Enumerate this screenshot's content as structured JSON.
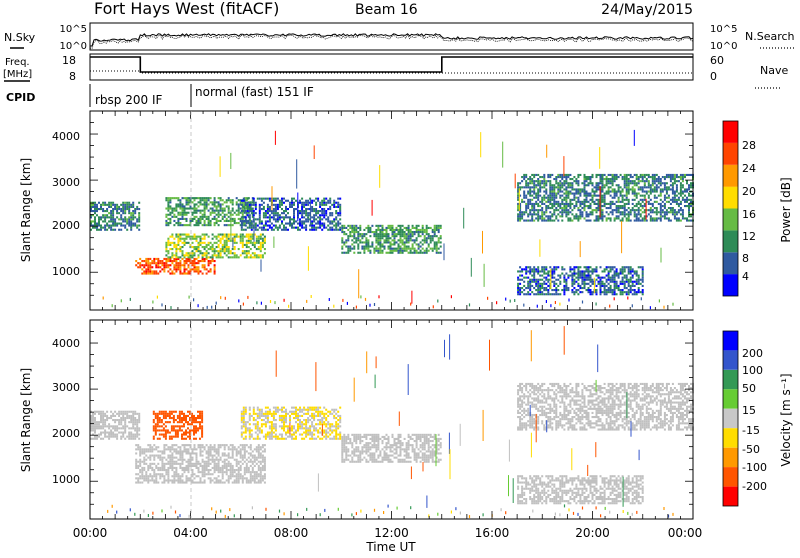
{
  "header": {
    "title": "Fort Hays West (fitACF)",
    "beam": "Beam 16",
    "date": "24/May/2015"
  },
  "top_panels": {
    "nsky_label": "N.Sky",
    "nsearch_label": "N.Search",
    "nsky_ticks": [
      "10^5",
      "10^0"
    ],
    "nsearch_ticks": [
      "10^5",
      "10^0"
    ],
    "freq_label_1": "Freq.",
    "freq_label_2": "[MHz]",
    "freq_ticks": [
      "18",
      "8"
    ],
    "nave_label": "Nave",
    "nave_ticks": [
      "60",
      "0"
    ],
    "cpid_label": "CPID",
    "cpid_segments": [
      {
        "label": "rbsp 200 IF",
        "start_hour": 0,
        "end_hour": 4.0
      },
      {
        "label": "normal (fast) 151 IF",
        "start_hour": 4.0,
        "end_hour": 24
      }
    ],
    "freq_trace": [
      {
        "start_hour": 0,
        "end_hour": 2.0,
        "mhz": 18
      },
      {
        "start_hour": 2.0,
        "end_hour": 14.0,
        "mhz": 10.5
      },
      {
        "start_hour": 14.0,
        "end_hour": 24,
        "mhz": 18
      }
    ]
  },
  "power_panel": {
    "ylabel": "Slant Range [km]",
    "yticks": [
      "1000",
      "2000",
      "3000",
      "4000"
    ],
    "colorbar_label": "Power [dB]",
    "colorbar_ticks": [
      "4",
      "8",
      "12",
      "16",
      "20",
      "24",
      "28"
    ]
  },
  "velocity_panel": {
    "ylabel": "Slant Range [km]",
    "yticks": [
      "1000",
      "2000",
      "3000",
      "4000"
    ],
    "colorbar_label": "Velocity [m s⁻¹]",
    "colorbar_ticks": [
      "200",
      "100",
      "50",
      "15",
      "-15",
      "-50",
      "-100",
      "-200"
    ]
  },
  "xaxis": {
    "label": "Time UT",
    "ticks": [
      "00:00",
      "04:00",
      "08:00",
      "12:00",
      "16:00",
      "20:00",
      "00:00"
    ]
  },
  "colors": {
    "power_scale": [
      "#0000ff",
      "#2f5aa0",
      "#2e8b57",
      "#66bb44",
      "#ffdd00",
      "#ff9900",
      "#ff4400",
      "#ff0000"
    ],
    "velocity_scale": [
      "#0000ff",
      "#3355cc",
      "#339955",
      "#66cc33",
      "#c8c8c8",
      "#ffdd00",
      "#ff9900",
      "#ff5500",
      "#ff0000"
    ],
    "ground_scatter": "#c0c0c0"
  },
  "chart_data": [
    {
      "type": "heatmap",
      "title": "Power",
      "x_units": "hours UT",
      "xlim": [
        0,
        24
      ],
      "y_units": "km",
      "ylim": [
        180,
        4500
      ],
      "colorbar_range_db": [
        0,
        30
      ],
      "echo_regions": [
        {
          "start_hour": 0.0,
          "end_hour": 2.0,
          "range_km": [
            1900,
            2500
          ],
          "power_db": 8
        },
        {
          "start_hour": 1.8,
          "end_hour": 5.0,
          "range_km": [
            950,
            1300
          ],
          "power_db": 24
        },
        {
          "start_hour": 3.0,
          "end_hour": 7.0,
          "range_km": [
            1300,
            1800
          ],
          "power_db": 14
        },
        {
          "start_hour": 3.0,
          "end_hour": 6.5,
          "range_km": [
            2000,
            2600
          ],
          "power_db": 10
        },
        {
          "start_hour": 6.0,
          "end_hour": 10.0,
          "range_km": [
            1900,
            2600
          ],
          "power_db": 6
        },
        {
          "start_hour": 10.0,
          "end_hour": 14.0,
          "range_km": [
            1400,
            2000
          ],
          "power_db": 10
        },
        {
          "start_hour": 17.0,
          "end_hour": 24.0,
          "range_km": [
            2100,
            3100
          ],
          "power_db": 8
        },
        {
          "start_hour": 17.0,
          "end_hour": 22.0,
          "range_km": [
            500,
            1100
          ],
          "power_db": 6
        }
      ]
    },
    {
      "type": "heatmap",
      "title": "Velocity",
      "x_units": "hours UT",
      "xlim": [
        0,
        24
      ],
      "y_units": "km",
      "ylim": [
        180,
        4500
      ],
      "colorbar_range_ms": [
        -200,
        200
      ],
      "echo_regions": [
        {
          "start_hour": 0.0,
          "end_hour": 2.0,
          "range_km": [
            1900,
            2500
          ],
          "velocity_ms": 0
        },
        {
          "start_hour": 1.8,
          "end_hour": 7.0,
          "range_km": [
            950,
            1800
          ],
          "velocity_ms": 0
        },
        {
          "start_hour": 2.5,
          "end_hour": 4.5,
          "range_km": [
            1900,
            2500
          ],
          "velocity_ms": -150
        },
        {
          "start_hour": 6.0,
          "end_hour": 10.0,
          "range_km": [
            1900,
            2600
          ],
          "velocity_ms": -15
        },
        {
          "start_hour": 10.0,
          "end_hour": 14.0,
          "range_km": [
            1400,
            2000
          ],
          "velocity_ms": 0
        },
        {
          "start_hour": 17.0,
          "end_hour": 24.0,
          "range_km": [
            2100,
            3100
          ],
          "velocity_ms": 0
        },
        {
          "start_hour": 17.0,
          "end_hour": 22.0,
          "range_km": [
            500,
            1100
          ],
          "velocity_ms": 0
        }
      ]
    }
  ]
}
